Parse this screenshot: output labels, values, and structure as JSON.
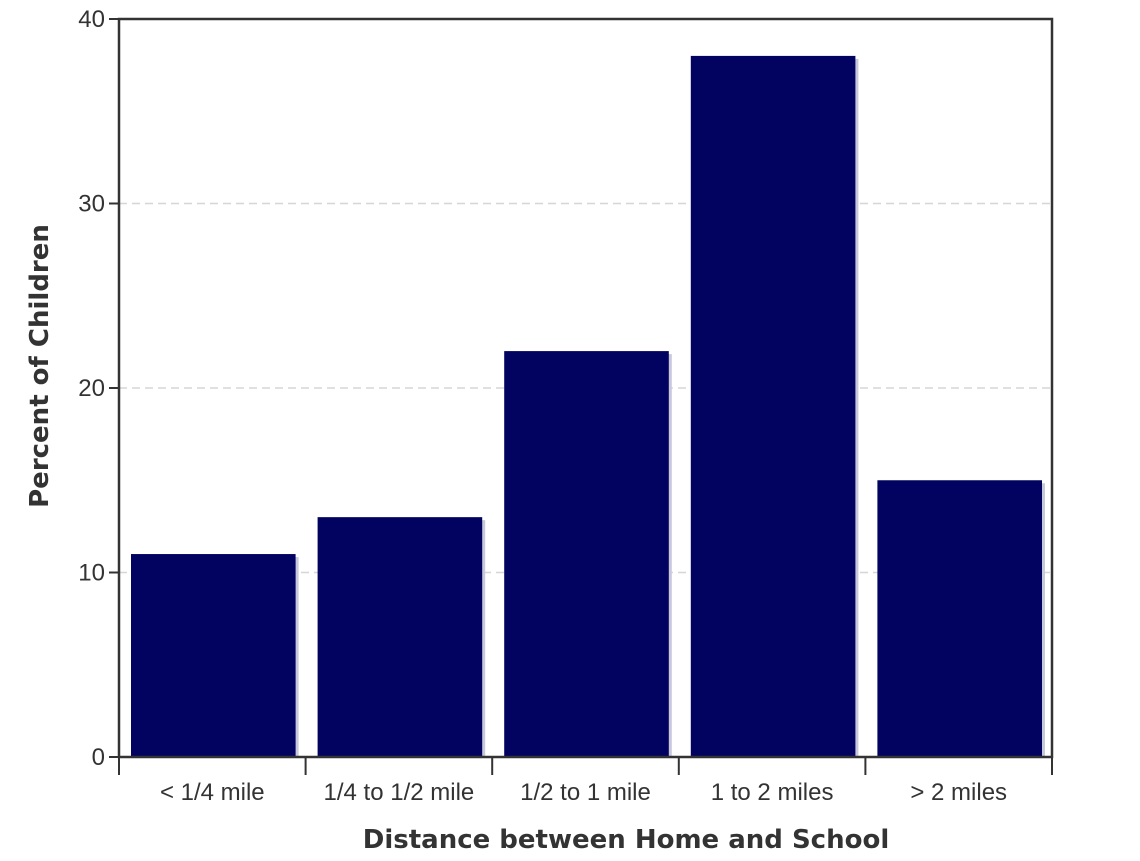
{
  "chart_data": {
    "type": "bar",
    "categories": [
      "< 1/4 mile",
      "1/4 to 1/2 mile",
      "1/2 to 1 mile",
      "1 to 2 miles",
      "> 2 miles"
    ],
    "values": [
      11,
      13,
      22,
      38,
      15
    ],
    "xlabel": "Distance between Home and School",
    "ylabel": "Percent of Children",
    "ylim": [
      0,
      40
    ],
    "yticks": [
      "0",
      "10",
      "20",
      "30",
      "40"
    ],
    "grid": true,
    "bar_color": "#020261",
    "bar_shadow_color": "#c8c8dc"
  }
}
